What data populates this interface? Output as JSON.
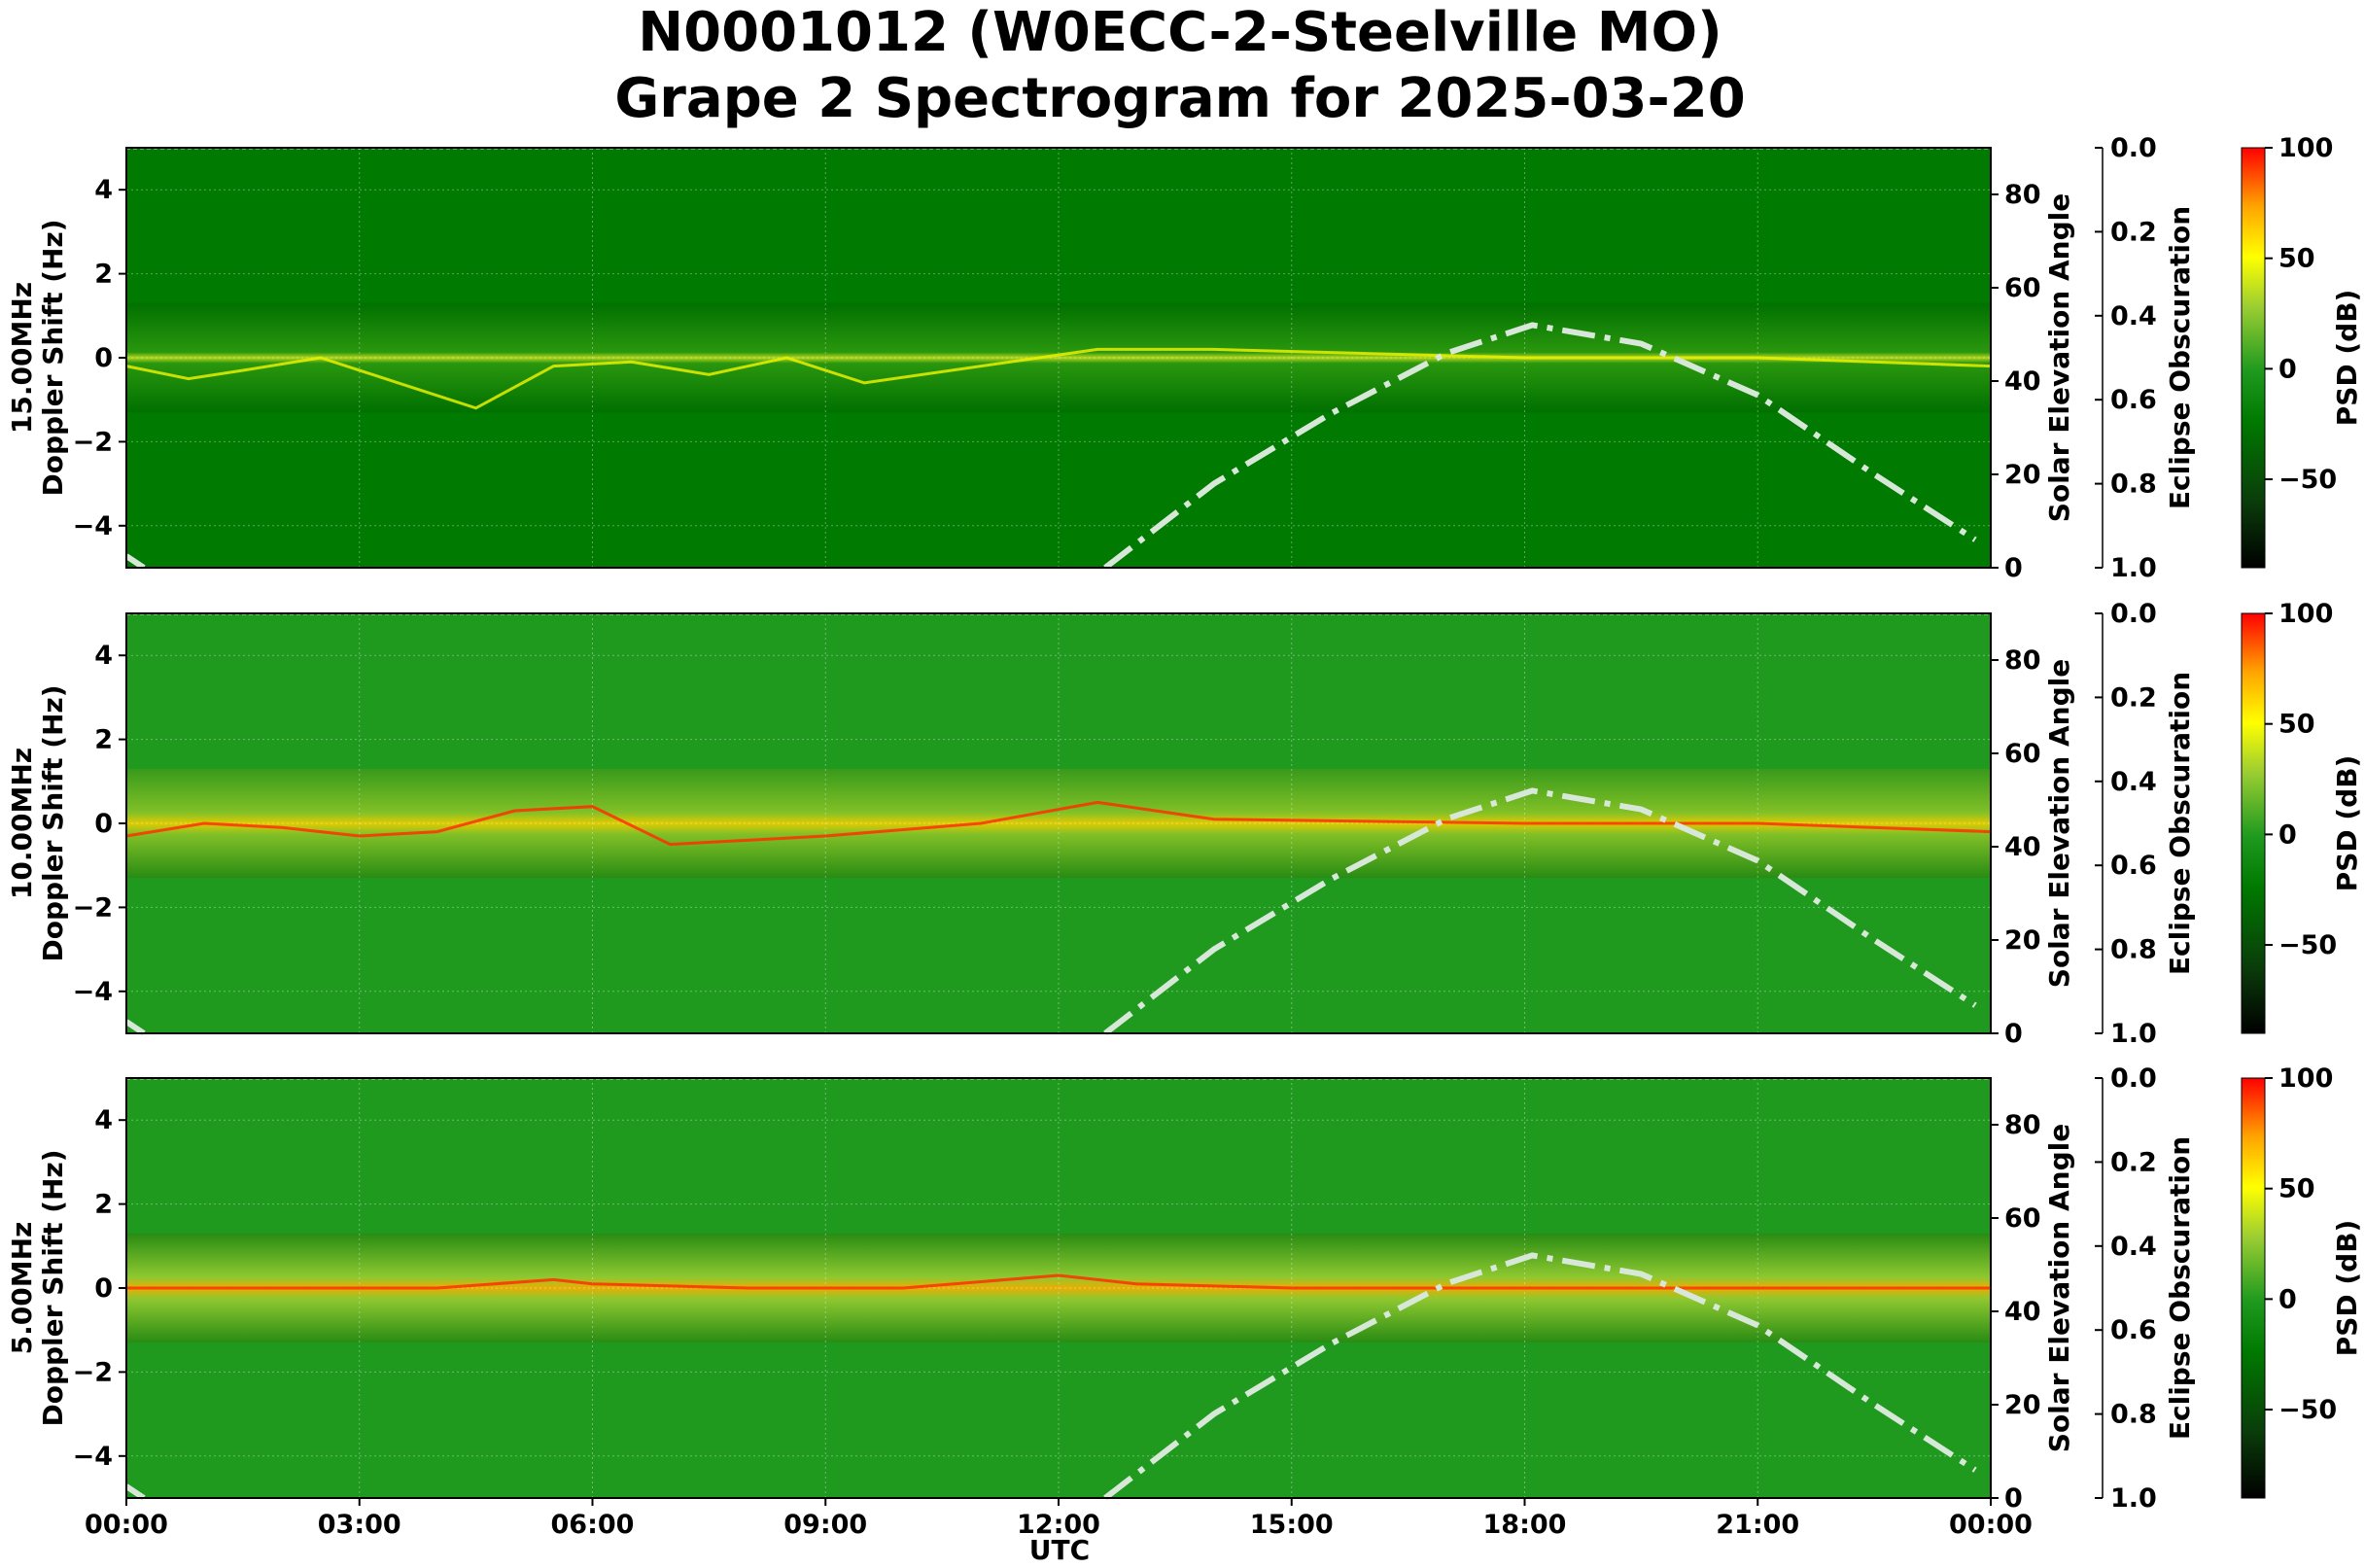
{
  "chart_data": {
    "type": "heatmap",
    "title_line1": "N0001012 (W0ECC-2-Steelville MO)",
    "title_line2": "Grape 2 Spectrogram for 2025-03-20",
    "xlabel": "UTC",
    "x_ticks": [
      "00:00",
      "03:00",
      "06:00",
      "09:00",
      "12:00",
      "15:00",
      "18:00",
      "21:00",
      "00:00"
    ],
    "x_range_hours": [
      0,
      24
    ],
    "y_ticks": [
      -4,
      -2,
      0,
      2,
      4
    ],
    "ylim": [
      -5,
      5
    ],
    "right_ylabel": "Solar Elevation Angle",
    "right_ticks": [
      0,
      20,
      40,
      60,
      80
    ],
    "right_ylim": [
      0,
      90
    ],
    "eclipse_label": "Eclipse Obscuration",
    "eclipse_ticks": [
      "0.0",
      "0.2",
      "0.4",
      "0.6",
      "0.8",
      "1.0"
    ],
    "colorbar_label": "PSD (dB)",
    "colorbar_ticks": [
      100,
      50,
      0,
      -50
    ],
    "colorbar_range": [
      -90,
      100
    ],
    "colormap": [
      "#000000",
      "#0a3d0a",
      "#007a00",
      "#1f9a1f",
      "#9acd32",
      "#ffff00",
      "#ffa500",
      "#ff0000"
    ],
    "solar_curve_color": "#d8e8d8",
    "panels": [
      {
        "label": "15.00MHz",
        "ylabel": "Doppler Shift (Hz)",
        "base_color": "#007a00",
        "solar_elevation": [
          [
            12.6,
            0
          ],
          [
            14,
            18
          ],
          [
            15.5,
            33
          ],
          [
            17,
            46
          ],
          [
            18.1,
            52
          ],
          [
            19.5,
            48
          ],
          [
            21,
            37
          ],
          [
            22.5,
            20
          ],
          [
            23.8,
            6
          ]
        ],
        "doppler_trace": [
          [
            0,
            -0.2
          ],
          [
            0.8,
            -0.5
          ],
          [
            1.5,
            -0.3
          ],
          [
            2.5,
            0
          ],
          [
            3.5,
            -0.6
          ],
          [
            4.5,
            -1.2
          ],
          [
            5.5,
            -0.2
          ],
          [
            6.5,
            -0.1
          ],
          [
            7.5,
            -0.4
          ],
          [
            8.5,
            0
          ],
          [
            9.5,
            -0.6
          ],
          [
            12.5,
            0.2
          ],
          [
            14,
            0.2
          ],
          [
            18,
            0
          ],
          [
            21,
            0
          ],
          [
            24,
            -0.2
          ]
        ]
      },
      {
        "label": "10.00MHz",
        "ylabel": "Doppler Shift (Hz)",
        "base_color": "#1f9a1f",
        "solar_elevation": [
          [
            12.6,
            0
          ],
          [
            14,
            18
          ],
          [
            15.5,
            33
          ],
          [
            17,
            46
          ],
          [
            18.1,
            52
          ],
          [
            19.5,
            48
          ],
          [
            21,
            37
          ],
          [
            22.5,
            20
          ],
          [
            23.8,
            6
          ]
        ],
        "doppler_trace": [
          [
            0,
            -0.3
          ],
          [
            1,
            0
          ],
          [
            2,
            -0.1
          ],
          [
            3,
            -0.3
          ],
          [
            4,
            -0.2
          ],
          [
            5,
            0.3
          ],
          [
            6,
            0.4
          ],
          [
            7,
            -0.5
          ],
          [
            9,
            -0.3
          ],
          [
            11,
            0
          ],
          [
            12.5,
            0.5
          ],
          [
            14,
            0.1
          ],
          [
            18,
            0
          ],
          [
            21,
            0
          ],
          [
            24,
            -0.2
          ]
        ]
      },
      {
        "label": "5.00MHz",
        "ylabel": "Doppler Shift (Hz)",
        "base_color": "#1f9a1f",
        "solar_elevation": [
          [
            12.6,
            0
          ],
          [
            14,
            18
          ],
          [
            15.5,
            33
          ],
          [
            17,
            46
          ],
          [
            18.1,
            52
          ],
          [
            19.5,
            48
          ],
          [
            21,
            37
          ],
          [
            22.5,
            20
          ],
          [
            23.8,
            6
          ]
        ],
        "doppler_trace": [
          [
            0,
            0
          ],
          [
            2,
            0
          ],
          [
            4,
            0
          ],
          [
            5.5,
            0.2
          ],
          [
            6,
            0.1
          ],
          [
            8,
            0
          ],
          [
            10,
            0
          ],
          [
            12,
            0.3
          ],
          [
            13,
            0.1
          ],
          [
            15,
            0
          ],
          [
            18,
            0
          ],
          [
            21,
            0
          ],
          [
            24,
            0
          ]
        ]
      }
    ]
  }
}
